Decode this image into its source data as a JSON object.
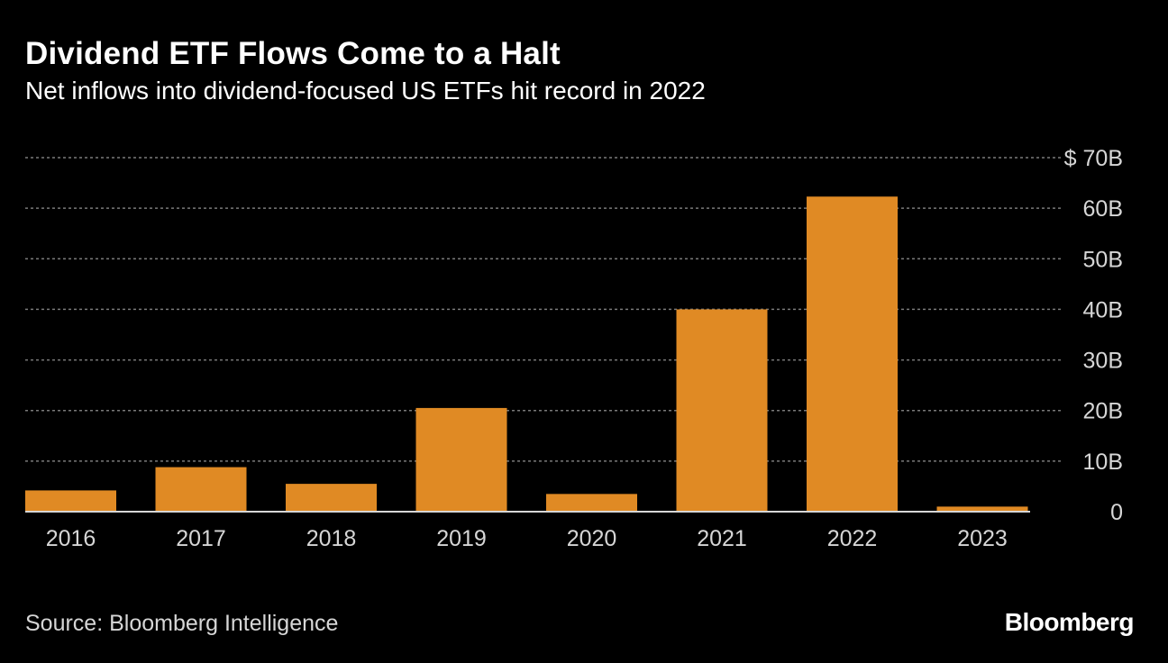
{
  "colors": {
    "background": "#000000",
    "bar": "#e08a24",
    "gridline": "#7a7a7a",
    "axis": "#d6d6d6",
    "text": "#ffffff",
    "tick_text": "#d6d6d6"
  },
  "chart_data": {
    "type": "bar",
    "title": "Dividend ETF Flows Come to a Halt",
    "subtitle": "Net inflows into dividend-focused US ETFs hit record in 2022",
    "categories": [
      "2016",
      "2017",
      "2018",
      "2019",
      "2020",
      "2021",
      "2022",
      "2023"
    ],
    "values": [
      4.2,
      8.8,
      5.5,
      20.5,
      3.5,
      40.0,
      62.3,
      1.0
    ],
    "unit": "USD billions",
    "xlabel": "",
    "ylabel": "",
    "ylim": [
      0,
      70
    ],
    "yticks": [
      0,
      10,
      20,
      30,
      40,
      50,
      60,
      70
    ],
    "ytick_labels": [
      "0",
      "10B",
      "20B",
      "30B",
      "40B",
      "50B",
      "60B",
      "$ 70B"
    ],
    "grid": true,
    "y_axis_side": "right",
    "legend": "none"
  },
  "footer": {
    "source": "Source: Bloomberg Intelligence",
    "brand": "Bloomberg"
  }
}
